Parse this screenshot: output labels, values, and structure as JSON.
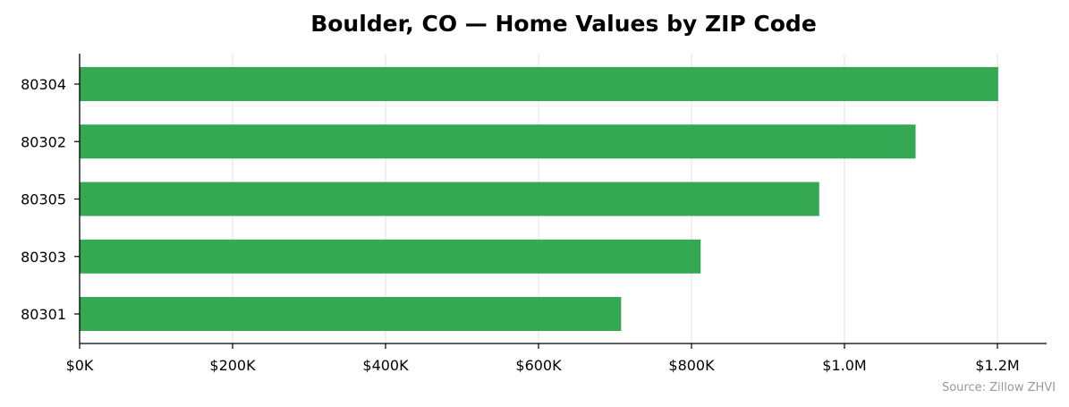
{
  "chart_data": {
    "type": "bar",
    "orientation": "horizontal",
    "title": "Boulder, CO — Home Values by ZIP Code",
    "xlabel": "",
    "ylabel": "",
    "categories": [
      "80304",
      "80302",
      "80305",
      "80303",
      "80301"
    ],
    "values": [
      1201000,
      1093000,
      967000,
      812000,
      708000
    ],
    "xlim": [
      0,
      1260000
    ],
    "xticks": [
      0,
      200000,
      400000,
      600000,
      800000,
      1000000,
      1200000
    ],
    "xtick_labels": [
      "$0K",
      "$200K",
      "$400K",
      "$600K",
      "$800K",
      "$1.0M",
      "$1.2M"
    ],
    "grid": "vertical",
    "bar_color": "#34a853",
    "source_note": "Source: Zillow ZHVI"
  }
}
